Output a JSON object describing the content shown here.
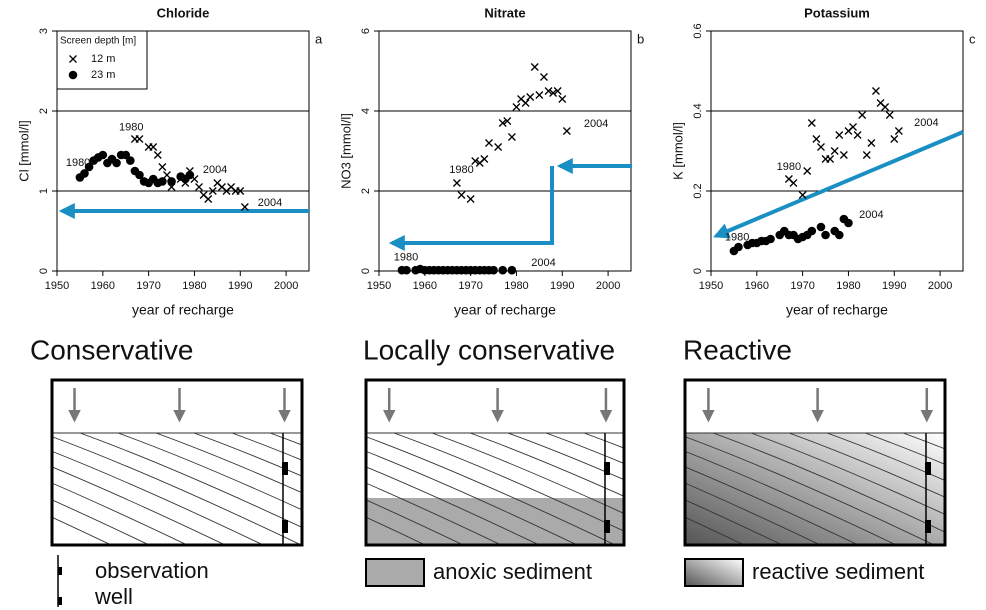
{
  "chart_data": [
    {
      "type": "scatter",
      "title": "Chloride",
      "panel_label": "a",
      "xlabel": "year of recharge",
      "ylabel": "Cl [mmol/l]",
      "xlim": [
        1950,
        2005
      ],
      "xticks": [
        1950,
        1960,
        1970,
        1980,
        1990,
        2000
      ],
      "ylim": [
        0,
        3
      ],
      "yticks": [
        0,
        1,
        2,
        3
      ],
      "grid": true,
      "legend": "top-left",
      "legend_title": "Screen depth [m]",
      "series": [
        {
          "name": "12 m",
          "color": "#000000",
          "marker": "x",
          "x": [
            1967,
            1968,
            1970,
            1971,
            1972,
            1973,
            1974,
            1975,
            1977,
            1978,
            1979,
            1980,
            1981,
            1982,
            1983,
            1984,
            1985,
            1986,
            1987,
            1988,
            1989,
            1990,
            1991
          ],
          "values": [
            1.65,
            1.65,
            1.55,
            1.55,
            1.45,
            1.3,
            1.2,
            1.05,
            1.15,
            1.1,
            1.25,
            1.15,
            1.05,
            0.95,
            0.9,
            1.0,
            1.1,
            1.05,
            1.0,
            1.05,
            1.0,
            1.0,
            0.8
          ]
        },
        {
          "name": "23 m",
          "color": "#000000",
          "marker": "o",
          "x": [
            1955,
            1956,
            1957,
            1958,
            1959,
            1960,
            1961,
            1962,
            1963,
            1964,
            1965,
            1966,
            1967,
            1968,
            1969,
            1970,
            1971,
            1972,
            1973,
            1975,
            1977,
            1978,
            1979
          ],
          "values": [
            1.17,
            1.22,
            1.3,
            1.38,
            1.42,
            1.45,
            1.35,
            1.4,
            1.35,
            1.45,
            1.45,
            1.38,
            1.25,
            1.2,
            1.12,
            1.1,
            1.15,
            1.1,
            1.12,
            1.12,
            1.18,
            1.15,
            1.2
          ]
        }
      ],
      "annotations": [
        {
          "text": "1980",
          "x": 1954.6,
          "y": 1.35
        },
        {
          "text": "1980",
          "x": 1966.2,
          "y": 1.79
        },
        {
          "text": "2004",
          "x": 1984.5,
          "y": 1.26
        },
        {
          "text": "2004",
          "x": 1996.5,
          "y": 0.85
        }
      ]
    },
    {
      "type": "scatter",
      "title": "Nitrate",
      "panel_label": "b",
      "xlabel": "year of recharge",
      "ylabel": "NO3 [mmol/l]",
      "xlim": [
        1950,
        2005
      ],
      "xticks": [
        1950,
        1960,
        1970,
        1980,
        1990,
        2000
      ],
      "ylim": [
        0,
        6
      ],
      "yticks": [
        0,
        2,
        4,
        6
      ],
      "grid": true,
      "series": [
        {
          "name": "12 m",
          "color": "#000000",
          "marker": "x",
          "x": [
            1967,
            1968,
            1970,
            1971,
            1972,
            1973,
            1974,
            1976,
            1977,
            1978,
            1979,
            1980,
            1981,
            1982,
            1983,
            1984,
            1985,
            1986,
            1987,
            1988,
            1989,
            1990,
            1991
          ],
          "values": [
            2.2,
            1.9,
            1.8,
            2.75,
            2.7,
            2.8,
            3.2,
            3.1,
            3.7,
            3.75,
            3.35,
            4.1,
            4.3,
            4.2,
            4.35,
            5.1,
            4.4,
            4.85,
            4.5,
            4.45,
            4.5,
            4.3,
            3.5
          ]
        },
        {
          "name": "23 m",
          "color": "#000000",
          "marker": "o",
          "x": [
            1955,
            1956,
            1958,
            1959,
            1960,
            1961,
            1962,
            1963,
            1964,
            1965,
            1966,
            1967,
            1968,
            1969,
            1970,
            1971,
            1972,
            1973,
            1974,
            1975,
            1977,
            1979
          ],
          "values": [
            0.02,
            0.02,
            0.02,
            0.05,
            0.02,
            0.02,
            0.02,
            0.02,
            0.02,
            0.02,
            0.02,
            0.02,
            0.02,
            0.02,
            0.02,
            0.02,
            0.02,
            0.02,
            0.02,
            0.02,
            0.02,
            0.02
          ]
        }
      ],
      "annotations": [
        {
          "text": "1980",
          "x": 1968,
          "y": 2.52
        },
        {
          "text": "1980",
          "x": 1955.9,
          "y": 0.33
        },
        {
          "text": "2004",
          "x": 1985.9,
          "y": 0.2
        },
        {
          "text": "2004",
          "x": 1997.4,
          "y": 3.67
        }
      ]
    },
    {
      "type": "scatter",
      "title": "Potassium",
      "panel_label": "c",
      "xlabel": "year of recharge",
      "ylabel": "K [mmol/l]",
      "xlim": [
        1950,
        2005
      ],
      "xticks": [
        1950,
        1960,
        1970,
        1980,
        1990,
        2000
      ],
      "ylim": [
        0,
        0.6
      ],
      "yticks": [
        0,
        0.2,
        0.4,
        0.6
      ],
      "grid": true,
      "series": [
        {
          "name": "12 m",
          "color": "#000000",
          "marker": "x",
          "x": [
            1967,
            1968,
            1970,
            1971,
            1972,
            1973,
            1974,
            1975,
            1976,
            1977,
            1978,
            1979,
            1980,
            1981,
            1982,
            1983,
            1984,
            1985,
            1986,
            1987,
            1988,
            1989,
            1990,
            1991
          ],
          "values": [
            0.23,
            0.22,
            0.19,
            0.25,
            0.37,
            0.33,
            0.31,
            0.28,
            0.28,
            0.3,
            0.34,
            0.29,
            0.35,
            0.36,
            0.34,
            0.39,
            0.29,
            0.32,
            0.45,
            0.42,
            0.41,
            0.39,
            0.33,
            0.35
          ]
        },
        {
          "name": "23 m",
          "color": "#000000",
          "marker": "o",
          "x": [
            1955,
            1956,
            1958,
            1959,
            1960,
            1961,
            1962,
            1963,
            1965,
            1966,
            1967,
            1968,
            1969,
            1970,
            1971,
            1972,
            1974,
            1975,
            1977,
            1978,
            1979,
            1980
          ],
          "values": [
            0.05,
            0.06,
            0.065,
            0.07,
            0.07,
            0.075,
            0.075,
            0.08,
            0.09,
            0.1,
            0.09,
            0.09,
            0.08,
            0.085,
            0.09,
            0.1,
            0.11,
            0.09,
            0.1,
            0.09,
            0.13,
            0.12
          ]
        }
      ],
      "annotations": [
        {
          "text": "1980",
          "x": 1967,
          "y": 0.26
        },
        {
          "text": "1980",
          "x": 1955.7,
          "y": 0.083
        },
        {
          "text": "2004",
          "x": 1997,
          "y": 0.37
        },
        {
          "text": "2004",
          "x": 1985,
          "y": 0.14
        }
      ]
    }
  ],
  "diagrams": [
    {
      "title": "Conservative",
      "legend": [
        "observation",
        "well"
      ]
    },
    {
      "title": "Locally conservative",
      "legend": [
        "anoxic sediment"
      ]
    },
    {
      "title": "Reactive",
      "legend": [
        "reactive sediment"
      ]
    }
  ]
}
